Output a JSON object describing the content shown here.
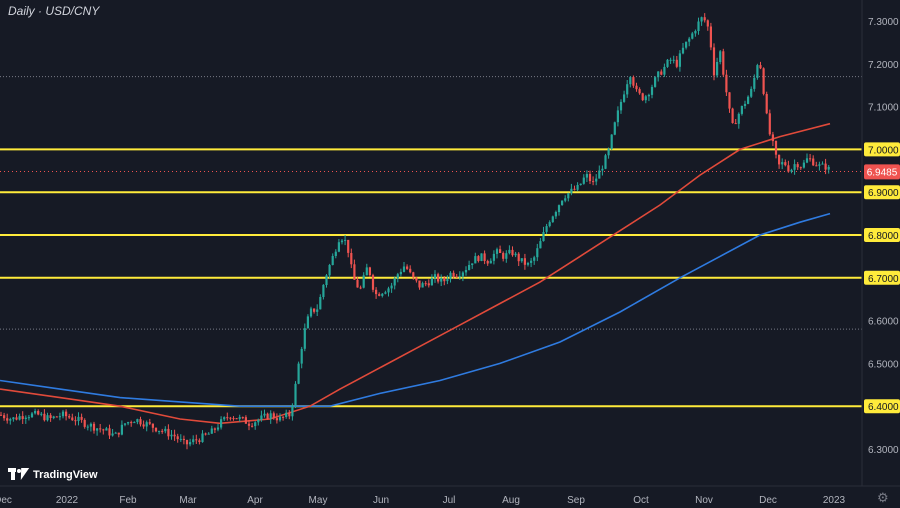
{
  "title": "Daily · USD/CNY",
  "logo": "TradingView",
  "icons": {
    "settings": "gear-icon",
    "logo": "tradingview-logo-icon"
  },
  "colors": {
    "background": "#161a25",
    "up": "#26a69a",
    "down": "#ef5350",
    "ma_short": "#e04a3a",
    "ma_long": "#2f7be0",
    "level": "#ffeb3b",
    "price_label": "#ef5350",
    "axis_text": "#b2b5be",
    "grid": "#5d606b"
  },
  "chart_data": {
    "type": "candlestick",
    "symbol": "USD/CNY",
    "timeframe": "Daily",
    "ylim": [
      6.25,
      7.36
    ],
    "y_ticks": [
      "7.3000",
      "7.2000",
      "7.1000",
      "7.0000",
      "6.9000",
      "6.8000",
      "6.7000",
      "6.6000",
      "6.5000",
      "6.4000",
      "6.3000"
    ],
    "x_ticks": [
      "Dec",
      "2022",
      "Feb",
      "Mar",
      "Apr",
      "May",
      "Jun",
      "Jul",
      "Aug",
      "Sep",
      "Oct",
      "Nov",
      "Dec",
      "2023"
    ],
    "current_price": "6.9485",
    "horizontal_levels": [
      7.0,
      6.9,
      6.8,
      6.7,
      6.4
    ],
    "dotted_levels": [
      7.17,
      6.58
    ],
    "price_path": [
      [
        0,
        6.38
      ],
      [
        12,
        6.37
      ],
      [
        25,
        6.38
      ],
      [
        38,
        6.38
      ],
      [
        50,
        6.37
      ],
      [
        62,
        6.38
      ],
      [
        75,
        6.37
      ],
      [
        85,
        6.36
      ],
      [
        96,
        6.35
      ],
      [
        108,
        6.34
      ],
      [
        115,
        6.33
      ],
      [
        125,
        6.36
      ],
      [
        135,
        6.37
      ],
      [
        145,
        6.36
      ],
      [
        155,
        6.35
      ],
      [
        165,
        6.34
      ],
      [
        175,
        6.33
      ],
      [
        185,
        6.31
      ],
      [
        195,
        6.32
      ],
      [
        205,
        6.33
      ],
      [
        212,
        6.34
      ],
      [
        220,
        6.36
      ],
      [
        230,
        6.38
      ],
      [
        240,
        6.37
      ],
      [
        250,
        6.36
      ],
      [
        260,
        6.37
      ],
      [
        270,
        6.38
      ],
      [
        280,
        6.37
      ],
      [
        290,
        6.38
      ],
      [
        295,
        6.44
      ],
      [
        300,
        6.52
      ],
      [
        305,
        6.58
      ],
      [
        310,
        6.62
      ],
      [
        318,
        6.63
      ],
      [
        325,
        6.7
      ],
      [
        333,
        6.75
      ],
      [
        340,
        6.8
      ],
      [
        347,
        6.78
      ],
      [
        353,
        6.7
      ],
      [
        360,
        6.67
      ],
      [
        368,
        6.73
      ],
      [
        375,
        6.66
      ],
      [
        383,
        6.67
      ],
      [
        391,
        6.68
      ],
      [
        398,
        6.71
      ],
      [
        405,
        6.73
      ],
      [
        412,
        6.7
      ],
      [
        420,
        6.68
      ],
      [
        428,
        6.69
      ],
      [
        435,
        6.7
      ],
      [
        443,
        6.69
      ],
      [
        450,
        6.71
      ],
      [
        458,
        6.71
      ],
      [
        465,
        6.72
      ],
      [
        472,
        6.74
      ],
      [
        480,
        6.75
      ],
      [
        488,
        6.74
      ],
      [
        496,
        6.76
      ],
      [
        504,
        6.75
      ],
      [
        512,
        6.76
      ],
      [
        520,
        6.74
      ],
      [
        528,
        6.73
      ],
      [
        533,
        6.74
      ],
      [
        540,
        6.78
      ],
      [
        548,
        6.83
      ],
      [
        556,
        6.86
      ],
      [
        563,
        6.89
      ],
      [
        570,
        6.9
      ],
      [
        578,
        6.91
      ],
      [
        586,
        6.94
      ],
      [
        593,
        6.92
      ],
      [
        600,
        6.95
      ],
      [
        608,
        6.99
      ],
      [
        615,
        7.06
      ],
      [
        622,
        7.12
      ],
      [
        630,
        7.18
      ],
      [
        637,
        7.13
      ],
      [
        644,
        7.12
      ],
      [
        650,
        7.14
      ],
      [
        657,
        7.17
      ],
      [
        664,
        7.19
      ],
      [
        670,
        7.21
      ],
      [
        677,
        7.2
      ],
      [
        684,
        7.24
      ],
      [
        690,
        7.26
      ],
      [
        697,
        7.29
      ],
      [
        703,
        7.31
      ],
      [
        709,
        7.28
      ],
      [
        714,
        7.18
      ],
      [
        720,
        7.23
      ],
      [
        726,
        7.14
      ],
      [
        732,
        7.05
      ],
      [
        738,
        7.08
      ],
      [
        745,
        7.11
      ],
      [
        752,
        7.14
      ],
      [
        759,
        7.22
      ],
      [
        763,
        7.15
      ],
      [
        768,
        7.05
      ],
      [
        773,
        7.01
      ],
      [
        778,
        6.96
      ],
      [
        784,
        6.97
      ],
      [
        790,
        6.95
      ],
      [
        796,
        6.97
      ],
      [
        802,
        6.96
      ],
      [
        808,
        6.98
      ],
      [
        814,
        6.97
      ],
      [
        820,
        6.96
      ],
      [
        826,
        6.96
      ],
      [
        830,
        6.95
      ]
    ],
    "ma_short": [
      [
        0,
        6.44
      ],
      [
        60,
        6.42
      ],
      [
        120,
        6.4
      ],
      [
        180,
        6.37
      ],
      [
        220,
        6.36
      ],
      [
        270,
        6.37
      ],
      [
        310,
        6.4
      ],
      [
        340,
        6.44
      ],
      [
        380,
        6.49
      ],
      [
        420,
        6.54
      ],
      [
        460,
        6.59
      ],
      [
        500,
        6.64
      ],
      [
        540,
        6.69
      ],
      [
        580,
        6.75
      ],
      [
        620,
        6.81
      ],
      [
        660,
        6.87
      ],
      [
        700,
        6.94
      ],
      [
        740,
        7.0
      ],
      [
        780,
        7.03
      ],
      [
        830,
        7.06
      ]
    ],
    "ma_long": [
      [
        0,
        6.46
      ],
      [
        60,
        6.44
      ],
      [
        120,
        6.42
      ],
      [
        180,
        6.41
      ],
      [
        240,
        6.4
      ],
      [
        290,
        6.4
      ],
      [
        330,
        6.4
      ],
      [
        380,
        6.43
      ],
      [
        440,
        6.46
      ],
      [
        500,
        6.5
      ],
      [
        560,
        6.55
      ],
      [
        620,
        6.62
      ],
      [
        680,
        6.7
      ],
      [
        720,
        6.75
      ],
      [
        760,
        6.8
      ],
      [
        800,
        6.83
      ],
      [
        830,
        6.85
      ]
    ]
  }
}
